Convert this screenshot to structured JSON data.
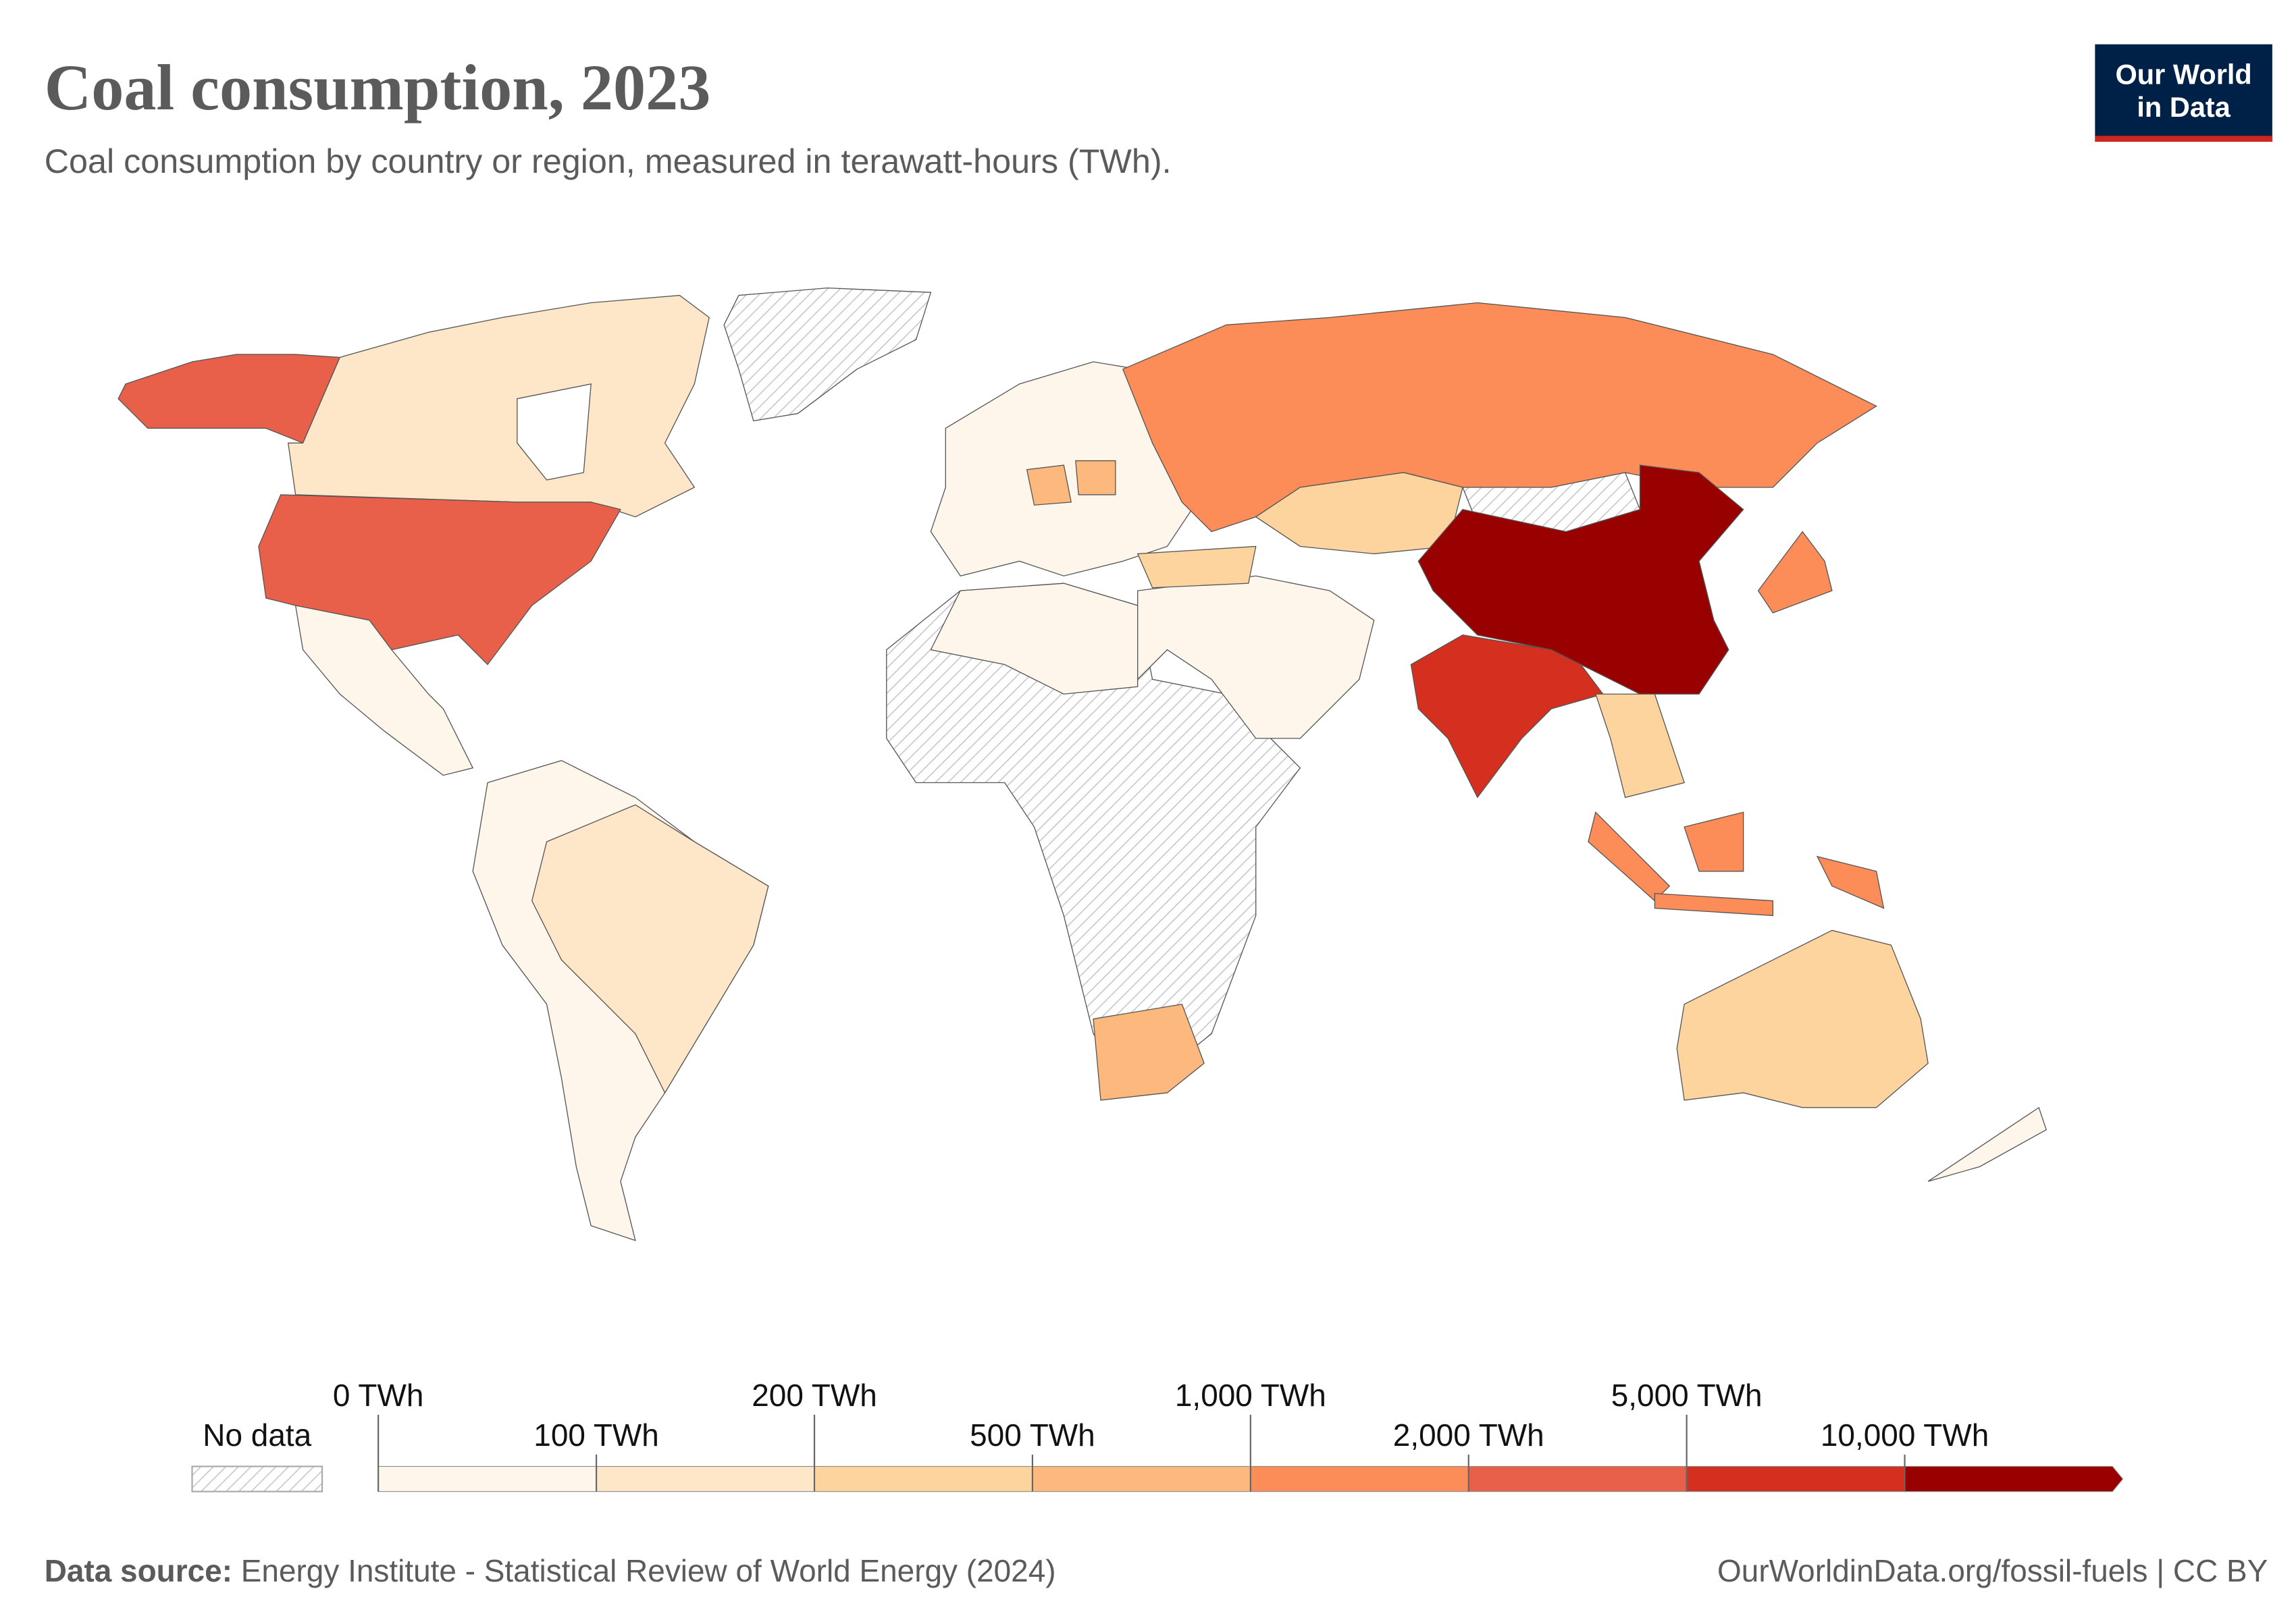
{
  "header": {
    "title": "Coal consumption, 2023",
    "subtitle": "Coal consumption by country or region, measured in terawatt-hours (TWh).",
    "logo": [
      "Our World",
      "in Data"
    ]
  },
  "legend": {
    "no_data_label": "No data",
    "bins": [
      {
        "value": 0,
        "label": "0 TWh"
      },
      {
        "value": 100,
        "label": "100 TWh"
      },
      {
        "value": 200,
        "label": "200 TWh"
      },
      {
        "value": 500,
        "label": "500 TWh"
      },
      {
        "value": 1000,
        "label": "1,000 TWh"
      },
      {
        "value": 2000,
        "label": "2,000 TWh"
      },
      {
        "value": 5000,
        "label": "5,000 TWh"
      },
      {
        "value": 10000,
        "label": "10,000 TWh"
      }
    ],
    "colors": [
      "#fef6ea",
      "#fee6c8",
      "#fdd49e",
      "#fdb87d",
      "#fc8d59",
      "#e9604a",
      "#d42f1f",
      "#990000"
    ]
  },
  "footer": {
    "source_label": "Data source:",
    "source": "Energy Institute - Statistical Review of World Energy (2024)",
    "url": "OurWorldinData.org/fossil-fuels | CC BY"
  }
}
